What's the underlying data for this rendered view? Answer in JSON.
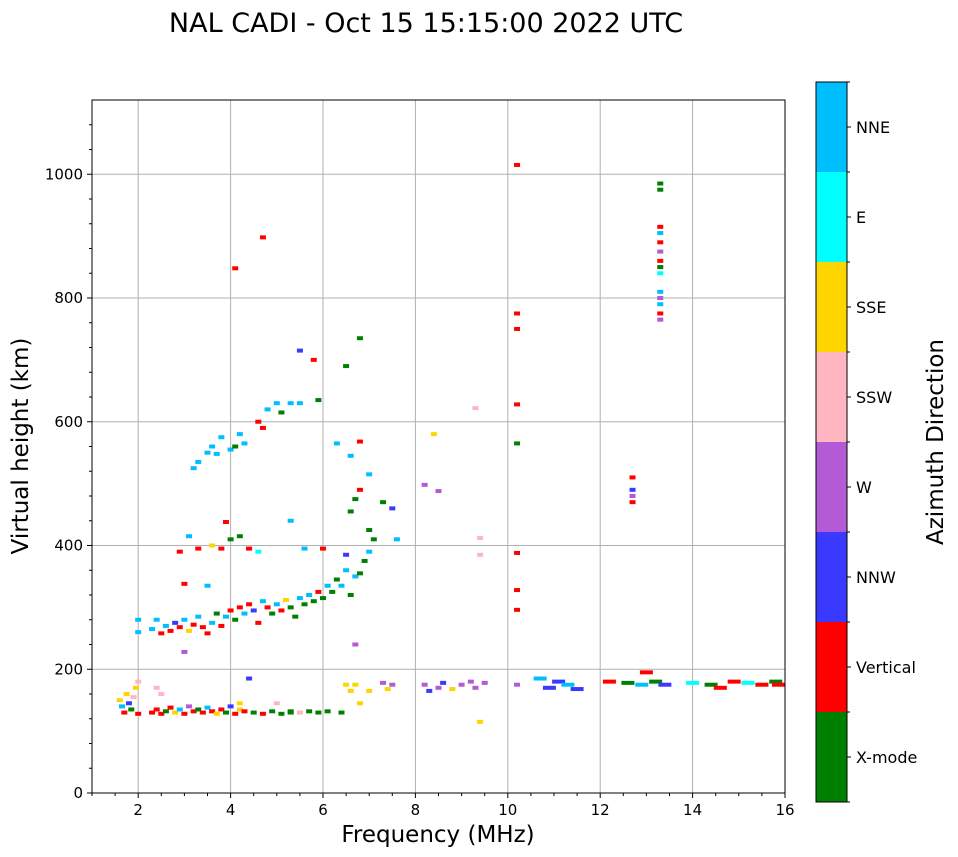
{
  "chart_data": {
    "type": "scatter",
    "title": "NAL CADI - Oct 15 15:15:00 2022 UTC",
    "xlabel": "Frequency (MHz)",
    "ylabel": "Virtual height (km)",
    "xlim": [
      1,
      16
    ],
    "ylim": [
      0,
      1120
    ],
    "xticks": [
      2,
      4,
      6,
      8,
      10,
      12,
      14,
      16
    ],
    "yticks": [
      0,
      200,
      400,
      600,
      800,
      1000
    ],
    "xtick_labels": [
      "2",
      "4",
      "6",
      "8",
      "10",
      "12",
      "14",
      "16"
    ],
    "ytick_labels": [
      "0",
      "200",
      "400",
      "600",
      "800",
      "1000"
    ],
    "grid": true,
    "colorbar": {
      "label": "Azimuth Direction",
      "categories": [
        "X-mode",
        "Vertical",
        "NNW",
        "W",
        "SSW",
        "SSE",
        "E",
        "NNE"
      ],
      "colors": [
        "#008000",
        "#ff0000",
        "#3a3aff",
        "#b35ad6",
        "#ffb6c1",
        "#ffd500",
        "#00ffff",
        "#00bfff"
      ]
    },
    "points": [
      [
        1.6,
        150,
        "SSE"
      ],
      [
        1.65,
        140,
        "NNE"
      ],
      [
        1.7,
        130,
        "Vertical"
      ],
      [
        1.75,
        160,
        "SSE"
      ],
      [
        1.8,
        145,
        "NNW"
      ],
      [
        1.85,
        135,
        "X-mode"
      ],
      [
        1.9,
        155,
        "SSW"
      ],
      [
        1.95,
        170,
        "SSE"
      ],
      [
        2.0,
        128,
        "Vertical"
      ],
      [
        2.0,
        180,
        "SSW"
      ],
      [
        2.3,
        130,
        "Vertical"
      ],
      [
        2.4,
        135,
        "Vertical"
      ],
      [
        2.5,
        128,
        "Vertical"
      ],
      [
        2.6,
        132,
        "X-mode"
      ],
      [
        2.7,
        138,
        "Vertical"
      ],
      [
        2.8,
        130,
        "SSE"
      ],
      [
        2.9,
        135,
        "NNE"
      ],
      [
        3.0,
        128,
        "Vertical"
      ],
      [
        3.1,
        140,
        "W"
      ],
      [
        3.2,
        132,
        "Vertical"
      ],
      [
        3.3,
        135,
        "X-mode"
      ],
      [
        3.4,
        130,
        "Vertical"
      ],
      [
        3.5,
        138,
        "NNE"
      ],
      [
        3.6,
        132,
        "Vertical"
      ],
      [
        3.7,
        128,
        "SSE"
      ],
      [
        3.8,
        135,
        "Vertical"
      ],
      [
        3.9,
        130,
        "X-mode"
      ],
      [
        4.0,
        140,
        "NNW"
      ],
      [
        4.1,
        128,
        "Vertical"
      ],
      [
        4.2,
        135,
        "SSE"
      ],
      [
        4.3,
        132,
        "Vertical"
      ],
      [
        4.5,
        130,
        "X-mode"
      ],
      [
        4.7,
        128,
        "Vertical"
      ],
      [
        4.9,
        132,
        "X-mode"
      ],
      [
        5.1,
        128,
        "X-mode"
      ],
      [
        5.3,
        132,
        "X-mode"
      ],
      [
        5.5,
        130,
        "SSW"
      ],
      [
        5.7,
        132,
        "X-mode"
      ],
      [
        5.9,
        130,
        "X-mode"
      ],
      [
        6.1,
        132,
        "X-mode"
      ],
      [
        6.4,
        130,
        "X-mode"
      ],
      [
        2.4,
        170,
        "SSW"
      ],
      [
        2.5,
        160,
        "SSW"
      ],
      [
        4.2,
        145,
        "SSE"
      ],
      [
        4.4,
        185,
        "NNW"
      ],
      [
        5.0,
        145,
        "SSW"
      ],
      [
        5.3,
        130,
        "X-mode"
      ],
      [
        6.5,
        175,
        "SSE"
      ],
      [
        6.7,
        175,
        "SSE"
      ],
      [
        6.6,
        165,
        "SSE"
      ],
      [
        6.8,
        145,
        "SSE"
      ],
      [
        7.0,
        165,
        "SSE"
      ],
      [
        7.3,
        178,
        "W"
      ],
      [
        7.4,
        168,
        "SSE"
      ],
      [
        7.5,
        175,
        "W"
      ],
      [
        8.2,
        175,
        "W"
      ],
      [
        8.3,
        165,
        "NNW"
      ],
      [
        8.5,
        170,
        "W"
      ],
      [
        8.6,
        178,
        "NNW"
      ],
      [
        8.8,
        168,
        "SSE"
      ],
      [
        9.0,
        175,
        "W"
      ],
      [
        9.2,
        180,
        "W"
      ],
      [
        9.3,
        170,
        "W"
      ],
      [
        9.5,
        178,
        "W"
      ],
      [
        10.2,
        175,
        "W"
      ],
      [
        10.7,
        185,
        "NNE"
      ],
      [
        10.9,
        170,
        "NNW"
      ],
      [
        11.1,
        180,
        "NNW"
      ],
      [
        11.3,
        175,
        "NNE"
      ],
      [
        11.5,
        168,
        "NNW"
      ],
      [
        12.2,
        180,
        "Vertical"
      ],
      [
        12.6,
        178,
        "X-mode"
      ],
      [
        12.9,
        175,
        "NNE"
      ],
      [
        13.0,
        195,
        "Vertical"
      ],
      [
        13.2,
        180,
        "X-mode"
      ],
      [
        13.4,
        175,
        "NNW"
      ],
      [
        14.0,
        178,
        "E"
      ],
      [
        14.4,
        175,
        "X-mode"
      ],
      [
        14.6,
        170,
        "Vertical"
      ],
      [
        14.9,
        180,
        "Vertical"
      ],
      [
        15.2,
        178,
        "E"
      ],
      [
        15.5,
        175,
        "Vertical"
      ],
      [
        15.8,
        180,
        "X-mode"
      ],
      [
        16.0,
        175,
        "Vertical"
      ],
      [
        9.4,
        115,
        "SSE"
      ],
      [
        2.0,
        260,
        "NNE"
      ],
      [
        2.0,
        280,
        "NNE"
      ],
      [
        2.3,
        265,
        "NNE"
      ],
      [
        2.4,
        280,
        "NNE"
      ],
      [
        2.5,
        258,
        "Vertical"
      ],
      [
        2.6,
        270,
        "NNE"
      ],
      [
        2.7,
        262,
        "Vertical"
      ],
      [
        2.8,
        275,
        "NNW"
      ],
      [
        2.9,
        268,
        "Vertical"
      ],
      [
        3.0,
        280,
        "NNE"
      ],
      [
        3.1,
        262,
        "SSE"
      ],
      [
        3.2,
        272,
        "Vertical"
      ],
      [
        3.3,
        285,
        "NNE"
      ],
      [
        3.4,
        268,
        "Vertical"
      ],
      [
        3.5,
        258,
        "Vertical"
      ],
      [
        3.6,
        275,
        "NNE"
      ],
      [
        3.7,
        290,
        "X-mode"
      ],
      [
        3.8,
        270,
        "Vertical"
      ],
      [
        3.9,
        285,
        "NNE"
      ],
      [
        4.0,
        295,
        "Vertical"
      ],
      [
        4.1,
        280,
        "X-mode"
      ],
      [
        4.2,
        300,
        "Vertical"
      ],
      [
        4.3,
        290,
        "NNE"
      ],
      [
        4.4,
        305,
        "Vertical"
      ],
      [
        4.5,
        295,
        "NNW"
      ],
      [
        4.6,
        275,
        "Vertical"
      ],
      [
        4.7,
        310,
        "NNE"
      ],
      [
        4.8,
        300,
        "Vertical"
      ],
      [
        4.9,
        290,
        "X-mode"
      ],
      [
        5.0,
        305,
        "NNE"
      ],
      [
        5.1,
        295,
        "Vertical"
      ],
      [
        5.2,
        312,
        "SSE"
      ],
      [
        5.3,
        300,
        "X-mode"
      ],
      [
        5.4,
        285,
        "X-mode"
      ],
      [
        5.5,
        315,
        "NNE"
      ],
      [
        5.6,
        305,
        "X-mode"
      ],
      [
        5.7,
        320,
        "NNE"
      ],
      [
        5.8,
        310,
        "X-mode"
      ],
      [
        5.9,
        325,
        "Vertical"
      ],
      [
        6.0,
        315,
        "X-mode"
      ],
      [
        6.1,
        335,
        "NNE"
      ],
      [
        6.2,
        325,
        "X-mode"
      ],
      [
        6.3,
        345,
        "X-mode"
      ],
      [
        6.4,
        335,
        "NNE"
      ],
      [
        6.5,
        360,
        "NNE"
      ],
      [
        6.6,
        320,
        "X-mode"
      ],
      [
        6.7,
        350,
        "NNE"
      ],
      [
        6.8,
        355,
        "X-mode"
      ],
      [
        6.9,
        375,
        "X-mode"
      ],
      [
        7.0,
        390,
        "NNE"
      ],
      [
        7.6,
        410,
        "NNE"
      ],
      [
        2.9,
        390,
        "Vertical"
      ],
      [
        3.0,
        338,
        "Vertical"
      ],
      [
        3.1,
        415,
        "NNE"
      ],
      [
        3.3,
        395,
        "Vertical"
      ],
      [
        3.5,
        335,
        "NNE"
      ],
      [
        3.6,
        400,
        "SSE"
      ],
      [
        3.8,
        395,
        "Vertical"
      ],
      [
        3.9,
        438,
        "Vertical"
      ],
      [
        4.0,
        410,
        "X-mode"
      ],
      [
        4.2,
        415,
        "X-mode"
      ],
      [
        4.4,
        395,
        "Vertical"
      ],
      [
        4.6,
        390,
        "E"
      ],
      [
        5.3,
        440,
        "NNE"
      ],
      [
        5.6,
        395,
        "NNE"
      ],
      [
        6.0,
        395,
        "Vertical"
      ],
      [
        6.5,
        385,
        "NNW"
      ],
      [
        6.6,
        455,
        "X-mode"
      ],
      [
        6.7,
        475,
        "X-mode"
      ],
      [
        6.8,
        490,
        "Vertical"
      ],
      [
        7.0,
        425,
        "X-mode"
      ],
      [
        7.1,
        410,
        "X-mode"
      ],
      [
        7.3,
        470,
        "X-mode"
      ],
      [
        7.5,
        460,
        "NNW"
      ],
      [
        3.2,
        525,
        "NNE"
      ],
      [
        3.3,
        535,
        "NNE"
      ],
      [
        3.5,
        550,
        "NNE"
      ],
      [
        3.6,
        560,
        "NNE"
      ],
      [
        3.7,
        548,
        "NNE"
      ],
      [
        3.8,
        575,
        "NNE"
      ],
      [
        4.0,
        555,
        "NNE"
      ],
      [
        4.1,
        560,
        "X-mode"
      ],
      [
        4.2,
        580,
        "NNE"
      ],
      [
        4.3,
        565,
        "NNE"
      ],
      [
        4.6,
        600,
        "Vertical"
      ],
      [
        4.7,
        590,
        "Vertical"
      ],
      [
        4.8,
        620,
        "NNE"
      ],
      [
        5.0,
        630,
        "NNE"
      ],
      [
        5.1,
        615,
        "X-mode"
      ],
      [
        5.3,
        630,
        "NNE"
      ],
      [
        5.5,
        630,
        "NNE"
      ],
      [
        5.9,
        635,
        "X-mode"
      ],
      [
        6.3,
        565,
        "NNE"
      ],
      [
        6.6,
        545,
        "NNE"
      ],
      [
        6.8,
        568,
        "Vertical"
      ],
      [
        7.0,
        515,
        "NNE"
      ],
      [
        6.7,
        240,
        "W"
      ],
      [
        3.0,
        228,
        "W"
      ],
      [
        4.1,
        848,
        "Vertical"
      ],
      [
        4.7,
        898,
        "Vertical"
      ],
      [
        5.5,
        715,
        "NNW"
      ],
      [
        5.8,
        700,
        "Vertical"
      ],
      [
        6.5,
        690,
        "X-mode"
      ],
      [
        6.8,
        735,
        "X-mode"
      ],
      [
        8.2,
        498,
        "W"
      ],
      [
        8.5,
        488,
        "W"
      ],
      [
        8.4,
        580,
        "SSE"
      ],
      [
        9.3,
        622,
        "SSW"
      ],
      [
        9.4,
        412,
        "SSW"
      ],
      [
        9.4,
        385,
        "SSW"
      ],
      [
        10.2,
        1015,
        "Vertical"
      ],
      [
        10.2,
        775,
        "Vertical"
      ],
      [
        10.2,
        750,
        "Vertical"
      ],
      [
        10.2,
        628,
        "Vertical"
      ],
      [
        10.2,
        565,
        "X-mode"
      ],
      [
        10.2,
        388,
        "Vertical"
      ],
      [
        10.2,
        328,
        "Vertical"
      ],
      [
        10.2,
        296,
        "Vertical"
      ],
      [
        12.7,
        510,
        "Vertical"
      ],
      [
        12.7,
        490,
        "NNW"
      ],
      [
        12.7,
        480,
        "W"
      ],
      [
        12.7,
        470,
        "Vertical"
      ],
      [
        13.3,
        985,
        "X-mode"
      ],
      [
        13.3,
        975,
        "X-mode"
      ],
      [
        13.3,
        915,
        "Vertical"
      ],
      [
        13.3,
        905,
        "NNE"
      ],
      [
        13.3,
        890,
        "Vertical"
      ],
      [
        13.3,
        875,
        "W"
      ],
      [
        13.3,
        860,
        "Vertical"
      ],
      [
        13.3,
        850,
        "X-mode"
      ],
      [
        13.3,
        840,
        "E"
      ],
      [
        13.3,
        810,
        "NNE"
      ],
      [
        13.3,
        800,
        "W"
      ],
      [
        13.3,
        790,
        "NNE"
      ],
      [
        13.3,
        775,
        "Vertical"
      ],
      [
        13.3,
        765,
        "W"
      ]
    ]
  }
}
